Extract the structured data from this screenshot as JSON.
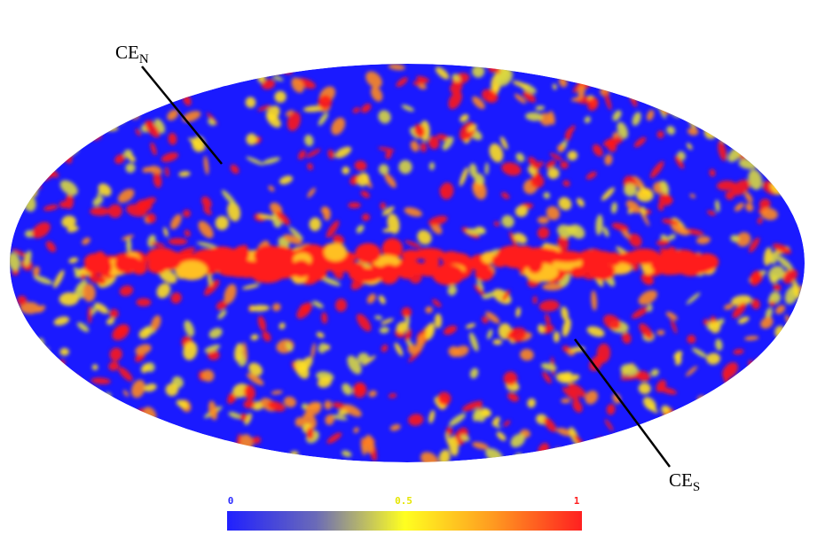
{
  "annotations": [
    {
      "text": "CE",
      "sub": "N"
    },
    {
      "text": "CE",
      "sub": "S"
    }
  ],
  "colorbar": {
    "ticks": [
      0,
      0.5,
      1
    ],
    "tick_colors": [
      "#2b2bff",
      "#e6e600",
      "#ff2020"
    ]
  }
}
